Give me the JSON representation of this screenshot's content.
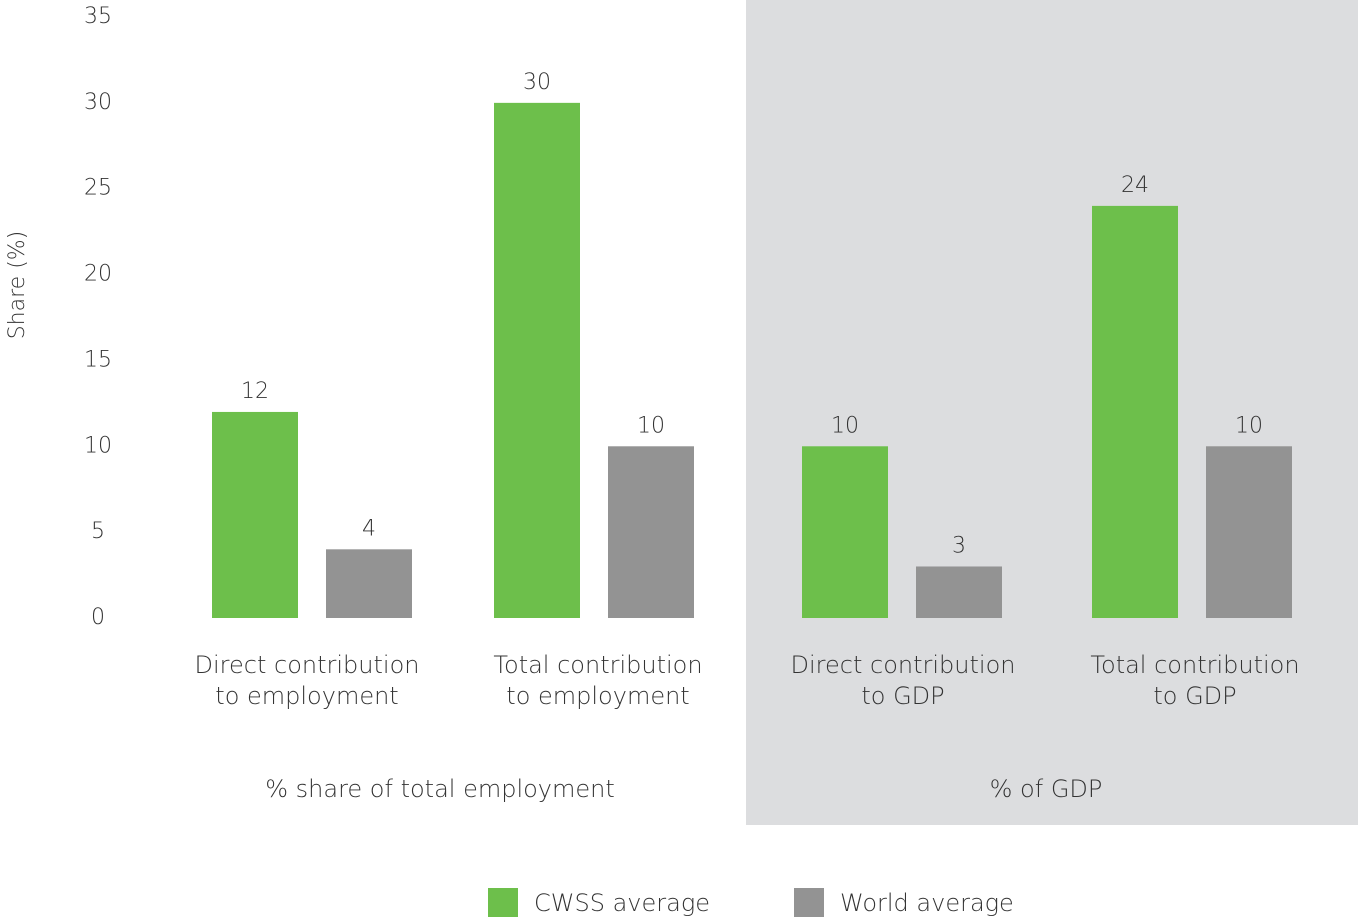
{
  "chart_data": {
    "type": "bar",
    "y_label": "Share (%)",
    "categories": [
      [
        "Direct contribution",
        "to employment"
      ],
      [
        "Total contribution",
        "to employment"
      ],
      [
        "Direct contribution",
        "to GDP"
      ],
      [
        "Total contribution",
        "to GDP"
      ]
    ],
    "group_labels": [
      "% share of total employment",
      "% of GDP"
    ],
    "series": [
      {
        "name": "CWSS average",
        "color": "#6dbf4b",
        "values": [
          12,
          30,
          10,
          24
        ]
      },
      {
        "name": "World average",
        "color": "#939393",
        "values": [
          4,
          10,
          3,
          10
        ]
      }
    ],
    "ylim": [
      0,
      35
    ],
    "yticks": [
      0,
      5,
      10,
      15,
      20,
      25,
      30,
      35
    ],
    "grid": false
  }
}
